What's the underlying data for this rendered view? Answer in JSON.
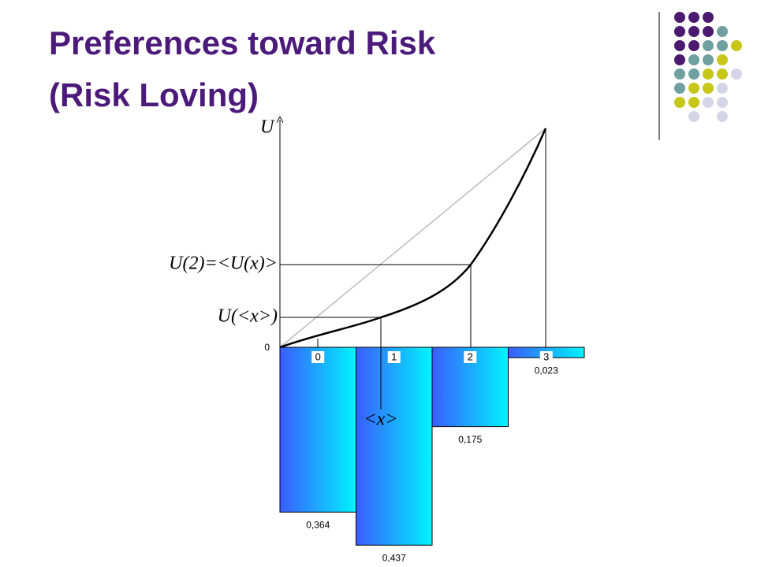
{
  "chart_data": {
    "type": "bar",
    "title": "Preferences toward Risk",
    "subtitle": "(Risk Loving)",
    "categories": [
      "0",
      "1",
      "2",
      "3"
    ],
    "values": [
      0.364,
      0.437,
      0.175,
      0.023
    ],
    "value_labels": [
      "0,364",
      "0,437",
      "0,175",
      "0,023"
    ],
    "colors": [
      "#3a5cff",
      "#00f4ff"
    ],
    "annotations": {
      "y_axis": "U",
      "origin": "0",
      "u2": "U(2)=<U(x)>",
      "u_mean": "U(<x>)",
      "mean": "<x>"
    }
  }
}
